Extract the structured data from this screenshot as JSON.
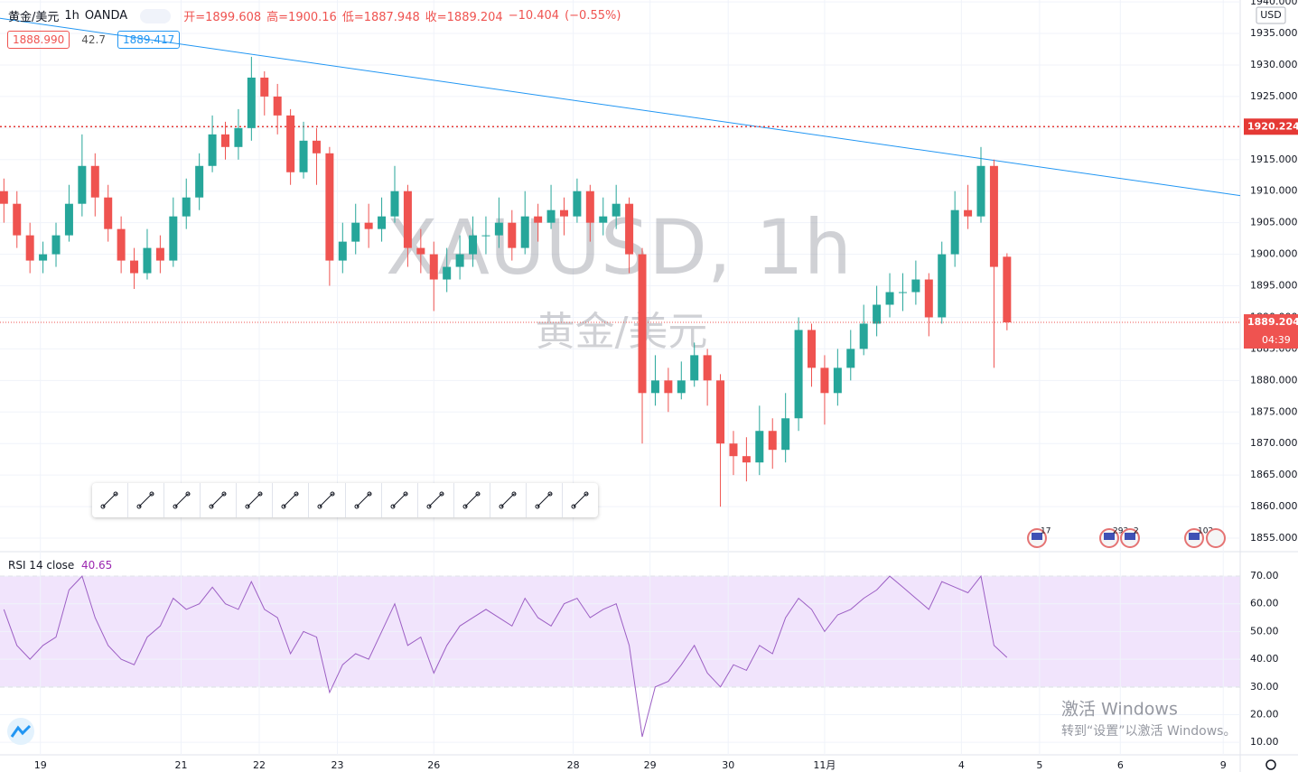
{
  "header": {
    "symbol": "黄金/美元",
    "interval": "1h",
    "source": "OANDA",
    "ohlc_labels": [
      "开=",
      "高=",
      "低=",
      "收="
    ],
    "change": "−10.404",
    "change_pct": "(−0.55%)",
    "bid": "1888.990",
    "spread": "42.7",
    "ask": "1889.417",
    "currency": "USD"
  },
  "watermark": {
    "title": "XAUUSD, 1h",
    "subtitle": "黄金/美元"
  },
  "events": [
    "17",
    "293",
    "2",
    "102"
  ],
  "windows_notice": {
    "title": "激活 Windows",
    "text": "转到“设置”以激活 Windows。"
  },
  "chart_data": [
    {
      "type": "candlestick",
      "up_color": "#26a69a",
      "down_color": "#ef5350",
      "grid": true,
      "open": [
        1910,
        1908,
        1903,
        1899,
        1900,
        1903,
        1908,
        1914,
        1909,
        1904,
        1899,
        1897,
        1901,
        1899,
        1906,
        1909,
        1914,
        1919,
        1917,
        1920,
        1928,
        1925,
        1922,
        1913,
        1918,
        1916,
        1899,
        1902,
        1905,
        1904,
        1906,
        1910,
        1901,
        1900,
        1896,
        1898,
        1900,
        1903,
        1903,
        1905,
        1901,
        1906,
        1905,
        1907,
        1906,
        1910,
        1905,
        1906,
        1908,
        1900,
        1878,
        1880,
        1878,
        1880,
        1884,
        1880,
        1870,
        1868,
        1867,
        1872,
        1869,
        1874,
        1888,
        1882,
        1878,
        1882,
        1885,
        1889,
        1892,
        1894,
        1894,
        1896,
        1890,
        1900,
        1907,
        1906,
        1914,
        1899.608
      ],
      "high": [
        1912,
        1910,
        1905,
        1902,
        1905,
        1911,
        1919,
        1916,
        1911,
        1906,
        1901,
        1904,
        1903,
        1909,
        1912,
        1916,
        1922,
        1921,
        1923,
        1931.3,
        1929,
        1927,
        1923,
        1921,
        1920,
        1917,
        1905,
        1908,
        1908,
        1909,
        1914,
        1911,
        1904,
        1902,
        1901,
        1903,
        1906,
        1906,
        1909,
        1907,
        1910,
        1908,
        1911,
        1909,
        1912,
        1911,
        1909,
        1911,
        1909,
        1901,
        1884,
        1882,
        1883,
        1886,
        1885,
        1881,
        1872,
        1871,
        1876,
        1874,
        1878,
        1890,
        1889,
        1884,
        1885,
        1888,
        1892,
        1895,
        1897,
        1897,
        1899,
        1897,
        1902,
        1910,
        1911,
        1917,
        1915,
        1900.16
      ],
      "low": [
        1905,
        1901,
        1897,
        1897,
        1898,
        1902,
        1906,
        1906,
        1902,
        1897,
        1894.5,
        1896,
        1897,
        1898,
        1904,
        1907,
        1913,
        1915,
        1915,
        1918,
        1922,
        1919,
        1911,
        1912,
        1911,
        1895,
        1897,
        1900,
        1901,
        1902,
        1905,
        1898,
        1897,
        1891,
        1894,
        1896,
        1898,
        1900,
        1901,
        1899,
        1900,
        1902,
        1904,
        1903,
        1905,
        1902,
        1903,
        1904,
        1897,
        1870,
        1876,
        1875,
        1877,
        1879,
        1876,
        1860,
        1865,
        1864,
        1865,
        1866,
        1867,
        1872,
        1879,
        1873,
        1876,
        1880,
        1884,
        1887,
        1890,
        1891,
        1892,
        1887,
        1889,
        1898,
        1904,
        1905,
        1882,
        1887.948
      ],
      "close": [
        1908,
        1903,
        1899,
        1900,
        1903,
        1908,
        1914,
        1909,
        1904,
        1899,
        1897,
        1901,
        1899,
        1906,
        1909,
        1914,
        1919,
        1917,
        1920,
        1928,
        1925,
        1922,
        1913,
        1918,
        1916,
        1899,
        1902,
        1905,
        1904,
        1906,
        1910,
        1901,
        1900,
        1896,
        1898,
        1900,
        1903,
        1903,
        1905,
        1901,
        1906,
        1905,
        1907,
        1906,
        1910,
        1905,
        1906,
        1908,
        1900,
        1878,
        1880,
        1878,
        1880,
        1884,
        1880,
        1870,
        1868,
        1867,
        1872,
        1869,
        1874,
        1888,
        1882,
        1878,
        1882,
        1885,
        1889,
        1892,
        1894,
        1894,
        1896,
        1890,
        1900,
        1907,
        1906,
        1914,
        1898,
        1889.204
      ],
      "countdown": "04:39",
      "alert_level": 1920.224,
      "trend_line": {
        "x": [
          -0.3,
          94.9
        ],
        "y": [
          1937.4,
          1909.3
        ]
      },
      "xlim": [
        -0.3,
        94.9
      ],
      "xticks": [
        {
          "value": 2.8,
          "label": "19"
        },
        {
          "value": 13.6,
          "label": "21"
        },
        {
          "value": 19.6,
          "label": "22"
        },
        {
          "value": 25.6,
          "label": "23"
        },
        {
          "value": 33.0,
          "label": "26"
        },
        {
          "value": 43.7,
          "label": "28"
        },
        {
          "value": 49.6,
          "label": "29"
        },
        {
          "value": 55.6,
          "label": "30"
        },
        {
          "value": 63.0,
          "label": "11月"
        },
        {
          "value": 73.5,
          "label": "4"
        },
        {
          "value": 79.5,
          "label": "5"
        },
        {
          "value": 85.7,
          "label": "6"
        },
        {
          "value": 93.6,
          "label": "9"
        }
      ],
      "ylim": [
        1853,
        1940.3
      ],
      "yticks": [
        {
          "value": 1855,
          "label": "1855.000"
        },
        {
          "value": 1860,
          "label": "1860.000"
        },
        {
          "value": 1865,
          "label": "1865.000"
        },
        {
          "value": 1870,
          "label": "1870.000"
        },
        {
          "value": 1875,
          "label": "1875.000"
        },
        {
          "value": 1880,
          "label": "1880.000"
        },
        {
          "value": 1885,
          "label": "1885.000"
        },
        {
          "value": 1890,
          "label": "1890.000"
        },
        {
          "value": 1895,
          "label": "1895.000"
        },
        {
          "value": 1900,
          "label": "1900.000"
        },
        {
          "value": 1905,
          "label": "1905.000"
        },
        {
          "value": 1910,
          "label": "1910.000"
        },
        {
          "value": 1915,
          "label": "1915.000"
        },
        {
          "value": 1920,
          "label": "1920.000"
        },
        {
          "value": 1925,
          "label": "1925.000"
        },
        {
          "value": 1930,
          "label": "1930.000"
        },
        {
          "value": 1935,
          "label": "1935.000"
        },
        {
          "value": 1940,
          "label": "1940.000"
        }
      ]
    },
    {
      "type": "line",
      "title": "RSI 14 close",
      "last_label": "40.65",
      "color": "#9c5fc4",
      "band_color": "#f1e4fc",
      "bands": [
        30,
        70
      ],
      "values": [
        58,
        45,
        40,
        45,
        48,
        65,
        70,
        55,
        45,
        40,
        38,
        48,
        52,
        62,
        58,
        60,
        66,
        60,
        58,
        68,
        58,
        55,
        42,
        50,
        48,
        28,
        38,
        42,
        40,
        50,
        60,
        45,
        48,
        35,
        45,
        52,
        55,
        58,
        55,
        52,
        62,
        55,
        52,
        60,
        62,
        55,
        58,
        60,
        45,
        12,
        30,
        32,
        38,
        45,
        35,
        30,
        38,
        36,
        45,
        42,
        55,
        62,
        58,
        50,
        56,
        58,
        62,
        65,
        70,
        66,
        62,
        58,
        68,
        66,
        64,
        70,
        45,
        40.65
      ],
      "ylim": [
        5.8,
        78.5
      ],
      "yticks": [
        {
          "value": 10,
          "label": "10.00"
        },
        {
          "value": 20,
          "label": "20.00"
        },
        {
          "value": 30,
          "label": "30.00"
        },
        {
          "value": 40,
          "label": "40.00"
        },
        {
          "value": 50,
          "label": "50.00"
        },
        {
          "value": 60,
          "label": "60.00"
        },
        {
          "value": 70,
          "label": "70.00"
        }
      ]
    }
  ]
}
